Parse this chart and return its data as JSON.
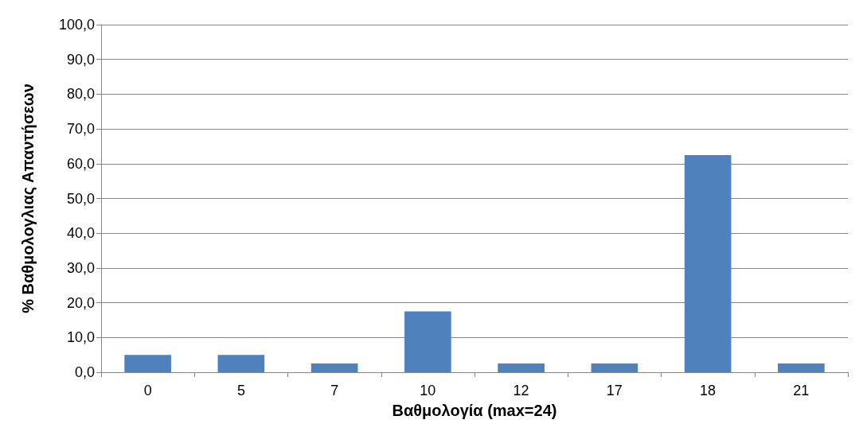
{
  "chart_data": {
    "type": "bar",
    "xlabel": "Βαθμολογία (max=24)",
    "ylabel": "% Βαθμολογλιας Απαντήσεων",
    "categories": [
      "0",
      "5",
      "7",
      "10",
      "12",
      "17",
      "18",
      "21"
    ],
    "values": [
      5,
      5,
      2.5,
      17.5,
      2.5,
      2.5,
      62.5,
      2.5
    ],
    "color": "#4f81bd",
    "ylim": [
      0,
      100
    ],
    "yticks": [
      {
        "value": 0,
        "label": "0,0"
      },
      {
        "value": 10,
        "label": "10,0"
      },
      {
        "value": 20,
        "label": "20,0"
      },
      {
        "value": 30,
        "label": "30,0"
      },
      {
        "value": 40,
        "label": "40,0"
      },
      {
        "value": 50,
        "label": "50,0"
      },
      {
        "value": 60,
        "label": "60,0"
      },
      {
        "value": 70,
        "label": "70,0"
      },
      {
        "value": 80,
        "label": "80,0"
      },
      {
        "value": 90,
        "label": "90,0"
      },
      {
        "value": 100,
        "label": "100,0"
      }
    ],
    "grid": "y"
  }
}
